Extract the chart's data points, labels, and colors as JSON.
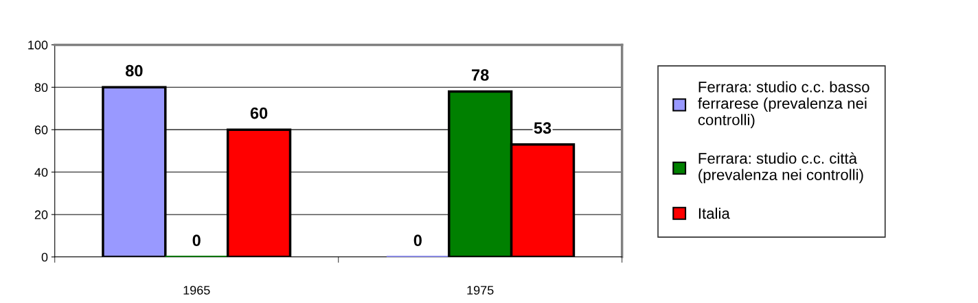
{
  "chart_data": {
    "type": "bar",
    "categories": [
      "1965",
      "1975"
    ],
    "series": [
      {
        "name": "Ferrara: studio c.c. basso ferrarese (prevalenza nei controlli)",
        "color": "#9999ff",
        "values": [
          80,
          0
        ]
      },
      {
        "name": "Ferrara: studio c.c. città (prevalenza nei controlli)",
        "color": "#008000",
        "values": [
          0,
          78
        ]
      },
      {
        "name": "Italia",
        "color": "#ff0000",
        "values": [
          60,
          53
        ]
      }
    ],
    "ylim": [
      0,
      100
    ],
    "yticks": [
      0,
      20,
      40,
      60,
      80,
      100
    ],
    "grid": "y",
    "legend": "right",
    "data_labels": true
  }
}
